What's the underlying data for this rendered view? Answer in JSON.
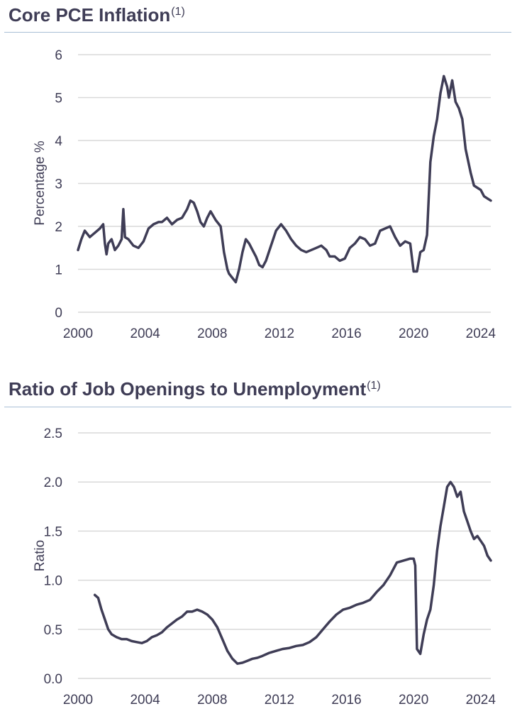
{
  "charts": [
    {
      "title": "Core PCE Inflation",
      "footnote": "(1)",
      "chart_data": {
        "type": "line",
        "title": "Core PCE Inflation",
        "xlabel": "",
        "ylabel": "Percentage %",
        "xlim": [
          2000,
          2024.6
        ],
        "ylim": [
          0,
          6
        ],
        "xticks": [
          "2000",
          "2004",
          "2008",
          "2012",
          "2016",
          "2020",
          "2024"
        ],
        "yticks": [
          "0",
          "1",
          "2",
          "3",
          "4",
          "5",
          "6"
        ],
        "grid": "horizontal",
        "line_color": "#3f3d56",
        "series": [
          {
            "x": [
              2000.0,
              2000.2,
              2000.4,
              2000.7,
              2001.0,
              2001.3,
              2001.5,
              2001.6,
              2001.7,
              2001.8,
              2002.0,
              2002.2,
              2002.4,
              2002.6,
              2002.7,
              2002.8,
              2003.0,
              2003.3,
              2003.6,
              2003.9,
              2004.2,
              2004.5,
              2004.8,
              2005.0,
              2005.3,
              2005.6,
              2005.9,
              2006.2,
              2006.5,
              2006.7,
              2006.9,
              2007.1,
              2007.3,
              2007.5,
              2007.7,
              2007.9,
              2008.2,
              2008.5,
              2008.7,
              2008.9,
              2009.0,
              2009.2,
              2009.4,
              2009.6,
              2009.8,
              2010.0,
              2010.2,
              2010.4,
              2010.6,
              2010.8,
              2011.0,
              2011.2,
              2011.5,
              2011.8,
              2012.1,
              2012.4,
              2012.7,
              2013.0,
              2013.3,
              2013.6,
              2013.9,
              2014.2,
              2014.5,
              2014.8,
              2015.0,
              2015.3,
              2015.6,
              2015.9,
              2016.2,
              2016.5,
              2016.8,
              2017.1,
              2017.4,
              2017.7,
              2018.0,
              2018.3,
              2018.6,
              2018.9,
              2019.2,
              2019.5,
              2019.8,
              2020.0,
              2020.2,
              2020.4,
              2020.6,
              2020.8,
              2021.0,
              2021.2,
              2021.4,
              2021.6,
              2021.8,
              2022.0,
              2022.1,
              2022.3,
              2022.5,
              2022.7,
              2022.9,
              2023.1,
              2023.4,
              2023.6,
              2023.8,
              2024.0,
              2024.2,
              2024.4,
              2024.6
            ],
            "y": [
              1.45,
              1.7,
              1.9,
              1.75,
              1.85,
              1.95,
              2.05,
              1.6,
              1.35,
              1.6,
              1.7,
              1.45,
              1.55,
              1.7,
              2.4,
              1.75,
              1.7,
              1.55,
              1.5,
              1.65,
              1.95,
              2.05,
              2.1,
              2.1,
              2.2,
              2.05,
              2.15,
              2.2,
              2.4,
              2.6,
              2.55,
              2.35,
              2.1,
              2.0,
              2.2,
              2.35,
              2.15,
              2.0,
              1.4,
              1.0,
              0.9,
              0.8,
              0.7,
              1.0,
              1.4,
              1.7,
              1.6,
              1.45,
              1.3,
              1.1,
              1.05,
              1.2,
              1.55,
              1.9,
              2.05,
              1.9,
              1.7,
              1.55,
              1.45,
              1.4,
              1.45,
              1.5,
              1.55,
              1.45,
              1.3,
              1.3,
              1.2,
              1.25,
              1.5,
              1.6,
              1.75,
              1.7,
              1.55,
              1.6,
              1.9,
              1.95,
              2.0,
              1.75,
              1.55,
              1.65,
              1.6,
              0.95,
              0.95,
              1.4,
              1.45,
              1.8,
              3.5,
              4.1,
              4.5,
              5.1,
              5.5,
              5.25,
              5.0,
              5.4,
              4.9,
              4.75,
              4.5,
              3.8,
              3.25,
              2.95,
              2.9,
              2.85,
              2.7,
              2.65,
              2.6
            ]
          }
        ]
      }
    },
    {
      "title": "Ratio of Job Openings to Unemployment",
      "footnote": "(1)",
      "chart_data": {
        "type": "line",
        "title": "Ratio of Job Openings to Unemployment",
        "xlabel": "",
        "ylabel": "Ratio",
        "xlim": [
          2000,
          2024.6
        ],
        "ylim": [
          0,
          2.5
        ],
        "xticks": [
          "2000",
          "2004",
          "2008",
          "2012",
          "2016",
          "2020",
          "2024"
        ],
        "yticks": [
          "0.0",
          "0.5",
          "1.0",
          "1.5",
          "2.0",
          "2.5"
        ],
        "grid": "horizontal",
        "line_color": "#3f3d56",
        "series": [
          {
            "x": [
              2001.0,
              2001.2,
              2001.4,
              2001.6,
              2001.8,
              2002.0,
              2002.3,
              2002.6,
              2002.9,
              2003.2,
              2003.5,
              2003.8,
              2004.1,
              2004.4,
              2004.7,
              2005.0,
              2005.3,
              2005.6,
              2005.9,
              2006.2,
              2006.5,
              2006.8,
              2007.1,
              2007.4,
              2007.7,
              2008.0,
              2008.3,
              2008.6,
              2008.9,
              2009.2,
              2009.5,
              2009.8,
              2010.1,
              2010.4,
              2010.7,
              2011.0,
              2011.4,
              2011.8,
              2012.2,
              2012.6,
              2013.0,
              2013.4,
              2013.8,
              2014.2,
              2014.6,
              2015.0,
              2015.4,
              2015.8,
              2016.2,
              2016.6,
              2017.0,
              2017.4,
              2017.8,
              2018.2,
              2018.6,
              2019.0,
              2019.4,
              2019.8,
              2020.0,
              2020.1,
              2020.2,
              2020.4,
              2020.6,
              2020.8,
              2021.0,
              2021.2,
              2021.4,
              2021.6,
              2021.8,
              2022.0,
              2022.2,
              2022.4,
              2022.6,
              2022.8,
              2023.0,
              2023.2,
              2023.4,
              2023.6,
              2023.8,
              2024.0,
              2024.2,
              2024.4,
              2024.6
            ],
            "y": [
              0.85,
              0.82,
              0.7,
              0.6,
              0.5,
              0.45,
              0.42,
              0.4,
              0.4,
              0.38,
              0.37,
              0.36,
              0.38,
              0.42,
              0.44,
              0.47,
              0.52,
              0.56,
              0.6,
              0.63,
              0.68,
              0.68,
              0.7,
              0.68,
              0.65,
              0.6,
              0.52,
              0.4,
              0.28,
              0.2,
              0.15,
              0.16,
              0.18,
              0.2,
              0.21,
              0.23,
              0.26,
              0.28,
              0.3,
              0.31,
              0.33,
              0.34,
              0.37,
              0.42,
              0.5,
              0.58,
              0.65,
              0.7,
              0.72,
              0.75,
              0.77,
              0.8,
              0.88,
              0.95,
              1.05,
              1.18,
              1.2,
              1.22,
              1.22,
              1.15,
              0.3,
              0.25,
              0.45,
              0.6,
              0.7,
              0.95,
              1.3,
              1.55,
              1.75,
              1.95,
              2.0,
              1.95,
              1.85,
              1.9,
              1.7,
              1.6,
              1.5,
              1.42,
              1.45,
              1.4,
              1.35,
              1.25,
              1.2
            ]
          }
        ]
      }
    }
  ]
}
